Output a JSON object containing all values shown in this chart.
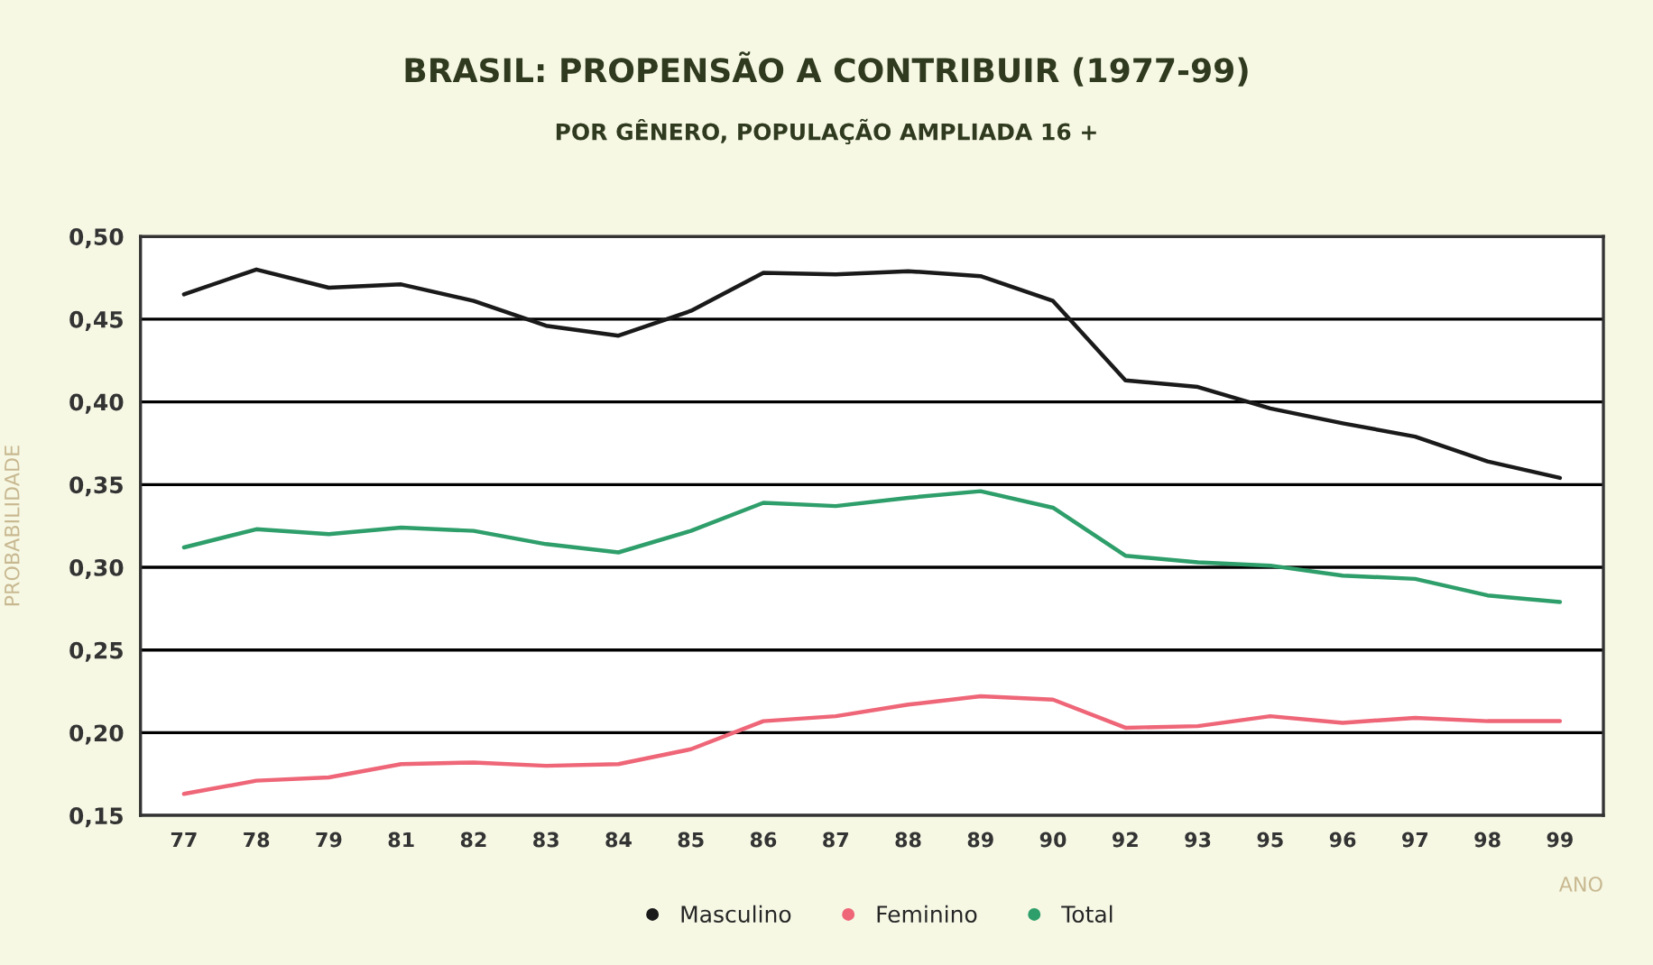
{
  "chart_data": {
    "type": "line",
    "title": "BRASIL: PROPENSÃO A CONTRIBUIR (1977-99)",
    "subtitle": "POR GÊNERO, POPULAÇÃO AMPLIADA 16 +",
    "xlabel": "ANO",
    "ylabel": "PROBABILIDADE",
    "categories": [
      "77",
      "78",
      "79",
      "81",
      "82",
      "83",
      "84",
      "85",
      "86",
      "87",
      "88",
      "89",
      "90",
      "92",
      "93",
      "95",
      "96",
      "97",
      "98",
      "99"
    ],
    "series": [
      {
        "name": "Masculino",
        "color": "#1a1a1a",
        "values": [
          0.465,
          0.48,
          0.469,
          0.471,
          0.461,
          0.446,
          0.44,
          0.455,
          0.478,
          0.477,
          0.479,
          0.476,
          0.461,
          0.413,
          0.409,
          0.396,
          0.387,
          0.379,
          0.364,
          0.354
        ]
      },
      {
        "name": "Feminino",
        "color": "#ee6677",
        "values": [
          0.163,
          0.171,
          0.173,
          0.181,
          0.182,
          0.18,
          0.181,
          0.19,
          0.207,
          0.21,
          0.217,
          0.222,
          0.22,
          0.203,
          0.204,
          0.21,
          0.206,
          0.209,
          0.207,
          0.207
        ]
      },
      {
        "name": "Total",
        "color": "#2e9e6a",
        "values": [
          0.312,
          0.323,
          0.32,
          0.324,
          0.322,
          0.314,
          0.309,
          0.322,
          0.339,
          0.337,
          0.342,
          0.346,
          0.336,
          0.307,
          0.303,
          0.301,
          0.295,
          0.293,
          0.283,
          0.279
        ]
      }
    ],
    "ylim": [
      0.15,
      0.5
    ],
    "yticks": [
      {
        "value": 0.15,
        "label": "0,15"
      },
      {
        "value": 0.2,
        "label": "0,20"
      },
      {
        "value": 0.25,
        "label": "0,25"
      },
      {
        "value": 0.3,
        "label": "0,30"
      },
      {
        "value": 0.35,
        "label": "0,35"
      },
      {
        "value": 0.4,
        "label": "0,40"
      },
      {
        "value": 0.45,
        "label": "0,45"
      },
      {
        "value": 0.5,
        "label": "0,50"
      }
    ],
    "grid": "y",
    "legend": "bottom",
    "marker": "none",
    "line_style": "solid"
  }
}
